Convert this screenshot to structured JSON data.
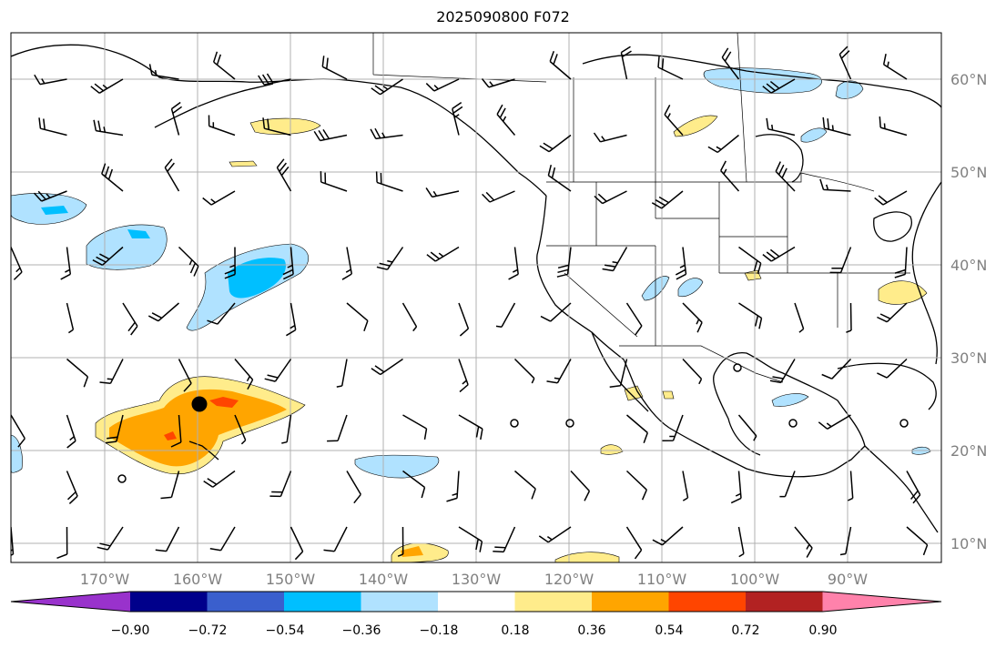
{
  "title": "2025090800 F072",
  "map": {
    "lon_labels": [
      "170°W",
      "160°W",
      "150°W",
      "140°W",
      "130°W",
      "120°W",
      "110°W",
      "100°W",
      "90°W"
    ],
    "lat_labels": [
      "60°N",
      "50°N",
      "40°N",
      "30°N",
      "20°N",
      "10°N"
    ],
    "grid": "on",
    "colors": {
      "coast": "#000000",
      "grid": "#b0b0b0"
    }
  },
  "colorbar": {
    "tick_labels": [
      "−0.90",
      "−0.72",
      "−0.54",
      "−0.36",
      "−0.18",
      "0.18",
      "0.36",
      "0.54",
      "0.72",
      "0.90"
    ],
    "colors": [
      "#9932cc",
      "#00008b",
      "#3a5fcd",
      "#00bfff",
      "#b0e2ff",
      "#ffffff",
      "#ffec8b",
      "#ffa500",
      "#ff4500",
      "#b22222",
      "#ff82ab"
    ],
    "extend": "both"
  }
}
